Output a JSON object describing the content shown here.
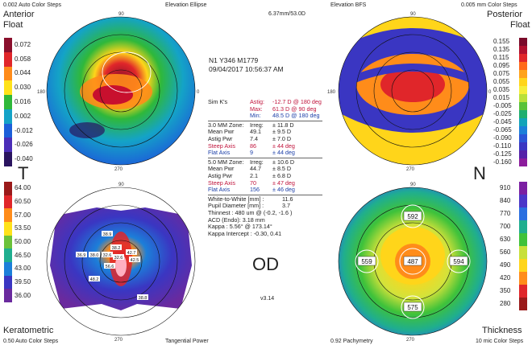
{
  "header": {
    "left_steps": "0.002 Auto Color Steps",
    "center": "Elevation Ellipse",
    "size": "6.37mm/53.0D",
    "right_center": "Elevation BFS",
    "right_steps": "0.005 mm Color Steps"
  },
  "quadrants": {
    "anterior": "Anterior",
    "anterior_sub": "Float",
    "posterior": "Posterior",
    "posterior_sub": "Float",
    "keratometric": "Keratometric",
    "thickness": "Thickness",
    "kerato_steps": "0.50 Auto Color Steps",
    "tangential": "Tangential Power",
    "pachy": "0.92 Pachymetry",
    "mic_steps": "10 mic Color Steps"
  },
  "letters": {
    "temporal": "T",
    "nasal": "N",
    "eye": "OD",
    "version": "v3.14"
  },
  "patient": {
    "id": "N1 Y346 M1779",
    "datetime": "09/04/2017 10:56:37 AM"
  },
  "sim_k": {
    "label": "Sim K's",
    "astig_label": "Astig:",
    "astig": "-12.7 D @ 180 deg",
    "max_label": "Max:",
    "max": "61.3 D @ 90 deg",
    "min_label": "Min:",
    "min": "48.5 D @ 180 deg"
  },
  "zone3": {
    "title": "3.0 MM Zone:",
    "irreg_label": "Irreg:",
    "irreg": "± 11.8 D",
    "mean_label": "Mean Pwr",
    "mean": "49.1",
    "mean_dev": "± 9.5 D",
    "astig_label": "Astig Pwr",
    "astig": "7.4",
    "astig_dev": "± 7.0 D",
    "steep_label": "Steep Axis",
    "steep": "86",
    "steep_dev": "± 44 deg",
    "flat_label": "Flat Axis",
    "flat": "9",
    "flat_dev": "± 44 deg"
  },
  "zone5": {
    "title": "5.0 MM Zone:",
    "irreg_label": "Irreg:",
    "irreg": "± 10.6 D",
    "mean_label": "Mean Pwr",
    "mean": "44.7",
    "mean_dev": "± 8.5 D",
    "astig_label": "Astig Pwr",
    "astig": "2.1",
    "astig_dev": "± 6.8 D",
    "steep_label": "Steep Axis",
    "steep": "70",
    "steep_dev": "± 47 deg",
    "flat_label": "Flat Axis",
    "flat": "156",
    "flat_dev": "± 46 deg"
  },
  "measures": {
    "wtw_label": "White-to-White [mm] :",
    "wtw": "11.6",
    "pupil_label": "Pupil Diameter [mm] :",
    "pupil": "3.7",
    "thinnest": "Thinnest : 480 um @ (-0.2, -1.6 )",
    "acd": "ACD (Endo): 3.18 mm",
    "kappa": "Kappa : 5.56° @ 173.14°",
    "kappa_intercept": "Kappa Intercept : -0.30, 0.41"
  },
  "scales": {
    "anterior": [
      "0.072",
      "0.058",
      "0.044",
      "0.030",
      "0.016",
      "0.002",
      "-0.012",
      "-0.026",
      "-0.040"
    ],
    "posterior": [
      "0.155",
      "0.135",
      "0.115",
      "0.095",
      "0.075",
      "0.055",
      "0.035",
      "0.015",
      "-0.005",
      "-0.025",
      "-0.045",
      "-0.065",
      "-0.090",
      "-0.110",
      "-0.125",
      "-0.160"
    ],
    "kerato": [
      "64.00",
      "60.50",
      "57.00",
      "53.50",
      "50.00",
      "46.50",
      "43.00",
      "39.50",
      "36.00"
    ],
    "thickness": [
      "910",
      "840",
      "770",
      "700",
      "630",
      "560",
      "490",
      "420",
      "350",
      "280"
    ]
  },
  "pachy_values": {
    "center": "487",
    "top": "592",
    "left": "559",
    "right": "594",
    "bottom": "575"
  },
  "kerato_values": [
    "36.9",
    "38.0",
    "32.6",
    "38.2",
    "42.7",
    "32.6",
    "48.2",
    "56.6",
    "38.8",
    "42.5",
    "38.9"
  ],
  "axis_labels": {
    "deg90": "90",
    "deg270": "270",
    "deg0": "0",
    "deg180": "180"
  },
  "colors": {
    "anterior_scale": [
      "#8a0f2c",
      "#e0262a",
      "#ff8c1a",
      "#ffe21a",
      "#2fb83a",
      "#14a3c7",
      "#1c5fd9",
      "#4b2eb8",
      "#2a145f"
    ],
    "posterior_scale": [
      "#7a0a2a",
      "#b0102e",
      "#e0262a",
      "#ff6a1a",
      "#ffa21a",
      "#ffd51a",
      "#f5ee3a",
      "#b9e03a",
      "#59c23a",
      "#1fae6f",
      "#12a3b8",
      "#1c7fd9",
      "#2a55d6",
      "#3a36c2",
      "#5521a8",
      "#8c1c9c"
    ],
    "kerato_scale": [
      "#9a1a1a",
      "#e0262a",
      "#ff8c1a",
      "#ffe21a",
      "#6bc23a",
      "#1fae8f",
      "#1c7fd9",
      "#3a36c2",
      "#6a2a9e"
    ],
    "thick_scale": [
      "#7b1fa2",
      "#4a36c8",
      "#2a6fe0",
      "#1fae8f",
      "#3fc23a",
      "#c8e03a",
      "#ffd51a",
      "#ff8c1a",
      "#e0262a",
      "#9a1a1a"
    ]
  }
}
